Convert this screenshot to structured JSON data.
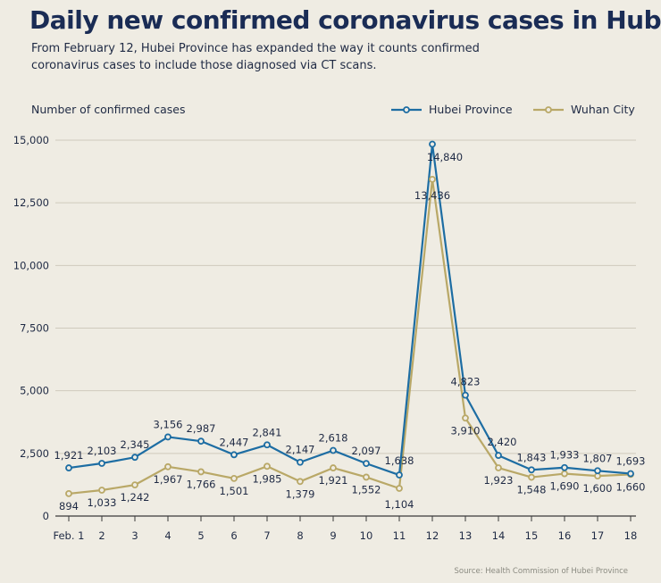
{
  "title": "Daily new confirmed coronavirus cases in Hubei",
  "subtitle": "From February 12, Hubei Province has expanded the way it counts confirmed coronavirus cases to include those diagnosed via CT scans.",
  "source": "Source: Health Commission of Hubei Province",
  "colors": {
    "hubei": "#1d6da3",
    "wuhan": "#b9a867",
    "grid": "#cfcabd",
    "background": "#efece3",
    "text": "#1f2a44"
  },
  "chart_data": {
    "type": "line",
    "ylabel": "Number of confirmed cases",
    "xlabel": "",
    "x": [
      "Feb. 1",
      "2",
      "3",
      "4",
      "5",
      "6",
      "7",
      "8",
      "9",
      "10",
      "11",
      "12",
      "13",
      "14",
      "15",
      "16",
      "17",
      "18"
    ],
    "ylim": [
      0,
      15000
    ],
    "yticks": [
      "0",
      "2,500",
      "5,000",
      "7,500",
      "10,000",
      "12,500",
      "15,000"
    ],
    "ytick_values": [
      0,
      2500,
      5000,
      7500,
      10000,
      12500,
      15000
    ],
    "grid": "horizontal",
    "legend_position": "top-right",
    "series": [
      {
        "name": "Hubei Province",
        "color": "#1d6da3",
        "values": [
          1921,
          2103,
          2345,
          3156,
          2987,
          2447,
          2841,
          2147,
          2618,
          2097,
          1638,
          14840,
          4823,
          2420,
          1843,
          1933,
          1807,
          1693
        ],
        "labels": [
          "1,921",
          "2,103",
          "2,345",
          "3,156",
          "2,987",
          "2,447",
          "2,841",
          "2,147",
          "2,618",
          "2,097",
          "1,638",
          "14,840",
          "4,823",
          "2,420",
          "1,843",
          "1,933",
          "1,807",
          "1,693"
        ]
      },
      {
        "name": "Wuhan City",
        "color": "#b9a867",
        "values": [
          894,
          1033,
          1242,
          1967,
          1766,
          1501,
          1985,
          1379,
          1921,
          1552,
          1104,
          13436,
          3910,
          1923,
          1548,
          1690,
          1600,
          1660
        ],
        "labels": [
          "894",
          "1,033",
          "1,242",
          "1,967",
          "1,766",
          "1,501",
          "1,985",
          "1,379",
          "1,921",
          "1,552",
          "1,104",
          "13,436",
          "3,910",
          "1,923",
          "1,548",
          "1,690",
          "1,600",
          "1,660"
        ]
      }
    ]
  }
}
